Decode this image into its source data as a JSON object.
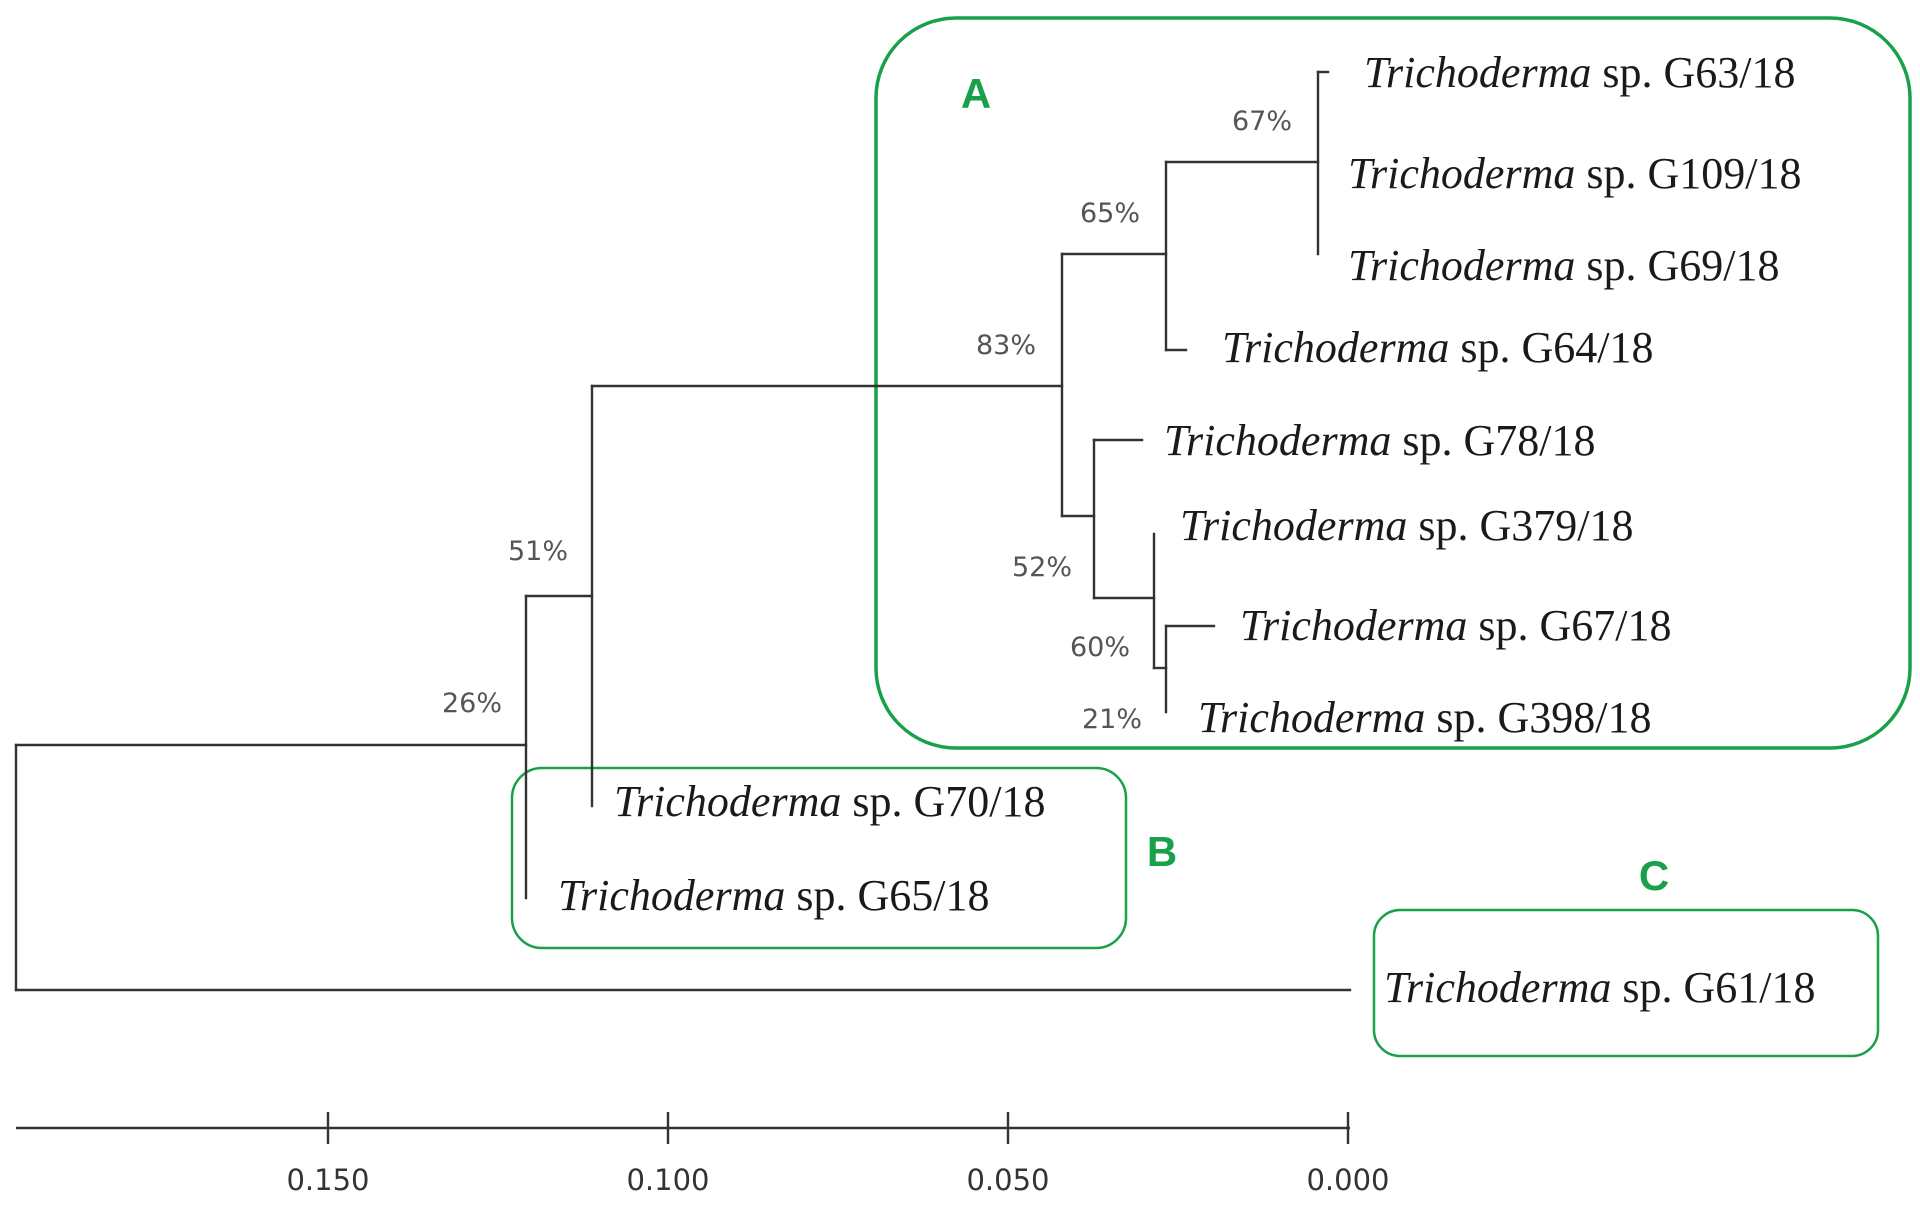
{
  "figure": {
    "leaves": [
      {
        "id": "g63",
        "genus": "Trichoderma",
        "rest": " sp. G63/18"
      },
      {
        "id": "g109",
        "genus": "Trichoderma",
        "rest": " sp. G109/18"
      },
      {
        "id": "g69",
        "genus": "Trichoderma",
        "rest": " sp. G69/18"
      },
      {
        "id": "g64",
        "genus": "Trichoderma",
        "rest": " sp. G64/18"
      },
      {
        "id": "g78",
        "genus": "Trichoderma",
        "rest": " sp. G78/18"
      },
      {
        "id": "g379",
        "genus": "Trichoderma",
        "rest": " sp. G379/18"
      },
      {
        "id": "g67",
        "genus": "Trichoderma",
        "rest": " sp. G67/18"
      },
      {
        "id": "g398",
        "genus": "Trichoderma",
        "rest": " sp. G398/18"
      },
      {
        "id": "g70",
        "genus": "Trichoderma",
        "rest": " sp. G70/18"
      },
      {
        "id": "g65",
        "genus": "Trichoderma",
        "rest": " sp. G65/18"
      },
      {
        "id": "g61",
        "genus": "Trichoderma",
        "rest": " sp. G61/18"
      }
    ],
    "bootstrap": [
      {
        "id": "bs-67",
        "text": "67%"
      },
      {
        "id": "bs-65",
        "text": "65%"
      },
      {
        "id": "bs-83",
        "text": "83%"
      },
      {
        "id": "bs-52",
        "text": "52%"
      },
      {
        "id": "bs-60",
        "text": "60%"
      },
      {
        "id": "bs-21",
        "text": "21%"
      },
      {
        "id": "bs-51",
        "text": "51%"
      },
      {
        "id": "bs-26",
        "text": "26%"
      }
    ],
    "groups": [
      {
        "id": "A",
        "label": "A"
      },
      {
        "id": "B",
        "label": "B"
      },
      {
        "id": "C",
        "label": "C"
      }
    ],
    "scale_ticks": [
      "0.150",
      "0.100",
      "0.050",
      "0.000"
    ],
    "colors": {
      "branch": "#333333",
      "group": "#1aa04a",
      "bootstrap": "#555555"
    }
  }
}
